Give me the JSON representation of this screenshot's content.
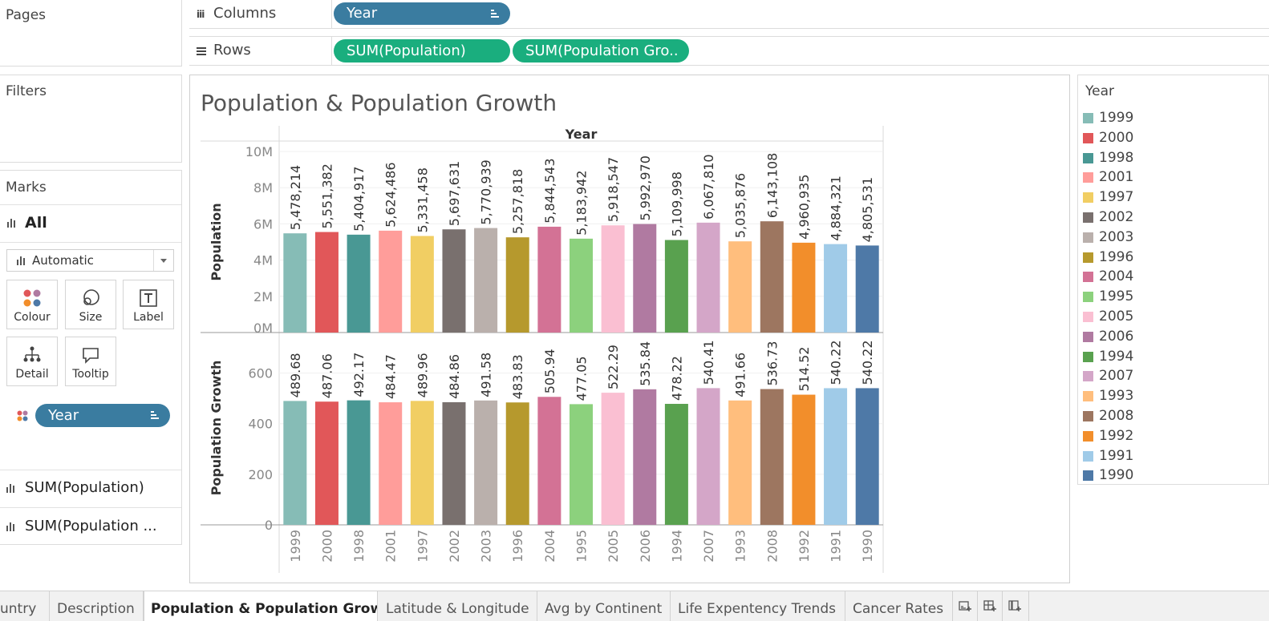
{
  "left_panel": {
    "pages_title": "Pages",
    "filters_title": "Filters",
    "marks_title": "Marks",
    "marks_all": "All",
    "mark_type": "Automatic",
    "buttons": [
      {
        "label": "Colour",
        "icon": "colour-icon"
      },
      {
        "label": "Size",
        "icon": "size-icon"
      },
      {
        "label": "Label",
        "icon": "label-icon"
      },
      {
        "label": "Detail",
        "icon": "detail-icon"
      },
      {
        "label": "Tooltip",
        "icon": "tooltip-icon"
      }
    ],
    "color_pill": "Year",
    "measure_1": "SUM(Population)",
    "measure_2": "SUM(Population ..."
  },
  "shelves": {
    "columns_label": "Columns",
    "columns_pill": "Year",
    "rows_label": "Rows",
    "rows_pill_1": "SUM(Population)",
    "rows_pill_2": "SUM(Population Gro.."
  },
  "legend": {
    "title": "Year",
    "items": [
      {
        "year": "1999",
        "color": "#86bcb6"
      },
      {
        "year": "2000",
        "color": "#e15759"
      },
      {
        "year": "1998",
        "color": "#499894"
      },
      {
        "year": "2001",
        "color": "#ff9d9a"
      },
      {
        "year": "1997",
        "color": "#f1ce63"
      },
      {
        "year": "2002",
        "color": "#79706e"
      },
      {
        "year": "2003",
        "color": "#bab0ac"
      },
      {
        "year": "1996",
        "color": "#b6992d"
      },
      {
        "year": "2004",
        "color": "#d37295"
      },
      {
        "year": "1995",
        "color": "#8cd17d"
      },
      {
        "year": "2005",
        "color": "#fabfd2"
      },
      {
        "year": "2006",
        "color": "#b07aa1"
      },
      {
        "year": "1994",
        "color": "#59a14f"
      },
      {
        "year": "2007",
        "color": "#d4a6c8"
      },
      {
        "year": "1993",
        "color": "#ffbe7d"
      },
      {
        "year": "2008",
        "color": "#9d7660"
      },
      {
        "year": "1992",
        "color": "#f28e2b"
      },
      {
        "year": "1991",
        "color": "#a0cbe8"
      },
      {
        "year": "1990",
        "color": "#4e79a7"
      }
    ]
  },
  "tabs": [
    {
      "label": "untry",
      "active": false
    },
    {
      "label": "Description",
      "active": false
    },
    {
      "label": "Population & Population Growth",
      "active": true
    },
    {
      "label": "Latitude & Longitude",
      "active": false
    },
    {
      "label": "Avg by Continent",
      "active": false
    },
    {
      "label": "Life Expentency Trends",
      "active": false
    },
    {
      "label": "Cancer Rates",
      "active": false
    }
  ],
  "chart_data": {
    "type": "bar",
    "title": "Population & Population Growth",
    "column_header": "Year",
    "categories": [
      "1999",
      "2000",
      "1998",
      "2001",
      "1997",
      "2002",
      "2003",
      "1996",
      "2004",
      "1995",
      "2005",
      "2006",
      "1994",
      "2007",
      "1993",
      "2008",
      "1992",
      "1991",
      "1990"
    ],
    "colors": [
      "#86bcb6",
      "#e15759",
      "#499894",
      "#ff9d9a",
      "#f1ce63",
      "#79706e",
      "#bab0ac",
      "#b6992d",
      "#d37295",
      "#8cd17d",
      "#fabfd2",
      "#b07aa1",
      "#59a14f",
      "#d4a6c8",
      "#ffbe7d",
      "#9d7660",
      "#f28e2b",
      "#a0cbe8",
      "#4e79a7"
    ],
    "panes": [
      {
        "ylabel": "Population",
        "ylim": [
          0,
          10000000
        ],
        "ticks": [
          0,
          2000000,
          4000000,
          6000000,
          8000000,
          10000000
        ],
        "tick_labels": [
          "0M",
          "2M",
          "4M",
          "6M",
          "8M",
          "10M"
        ],
        "values": [
          5478214,
          5551382,
          5404917,
          5624486,
          5331458,
          5697631,
          5770939,
          5257818,
          5844543,
          5183942,
          5918547,
          5992970,
          5109998,
          6067810,
          5035876,
          6143108,
          4960935,
          4884321,
          4805531
        ],
        "data_labels": [
          "5,478,214",
          "5,551,382",
          "5,404,917",
          "5,624,486",
          "5,331,458",
          "5,697,631",
          "5,770,939",
          "5,257,818",
          "5,844,543",
          "5,183,942",
          "5,918,547",
          "5,992,970",
          "5,109,998",
          "6,067,810",
          "5,035,876",
          "6,143,108",
          "4,960,935",
          "4,884,321",
          "4,805,531"
        ]
      },
      {
        "ylabel": "Population Growth",
        "ylim": [
          0,
          700
        ],
        "ticks": [
          0,
          200,
          400,
          600
        ],
        "tick_labels": [
          "0",
          "200",
          "400",
          "600"
        ],
        "values": [
          489.68,
          487.06,
          492.17,
          484.47,
          489.96,
          484.86,
          491.58,
          483.83,
          505.94,
          477.05,
          522.29,
          535.84,
          478.22,
          540.41,
          491.66,
          536.73,
          514.52,
          540.22,
          540.22
        ],
        "data_labels": [
          "489.68",
          "487.06",
          "492.17",
          "484.47",
          "489.96",
          "484.86",
          "491.58",
          "483.83",
          "505.94",
          "477.05",
          "522.29",
          "535.84",
          "478.22",
          "540.41",
          "491.66",
          "536.73",
          "514.52",
          "540.22",
          "540.22"
        ]
      }
    ]
  }
}
